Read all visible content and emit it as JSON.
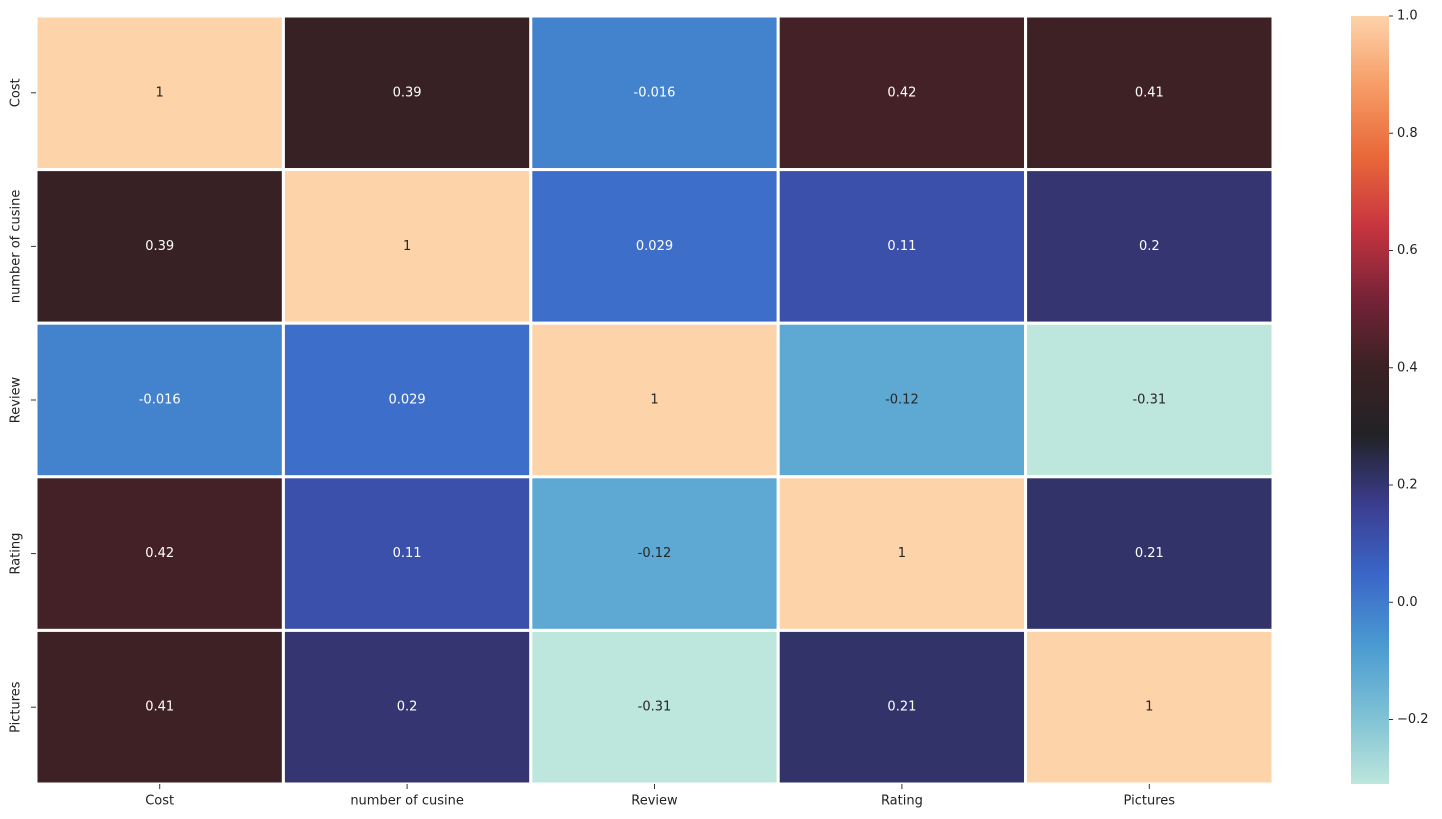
{
  "chart_data": {
    "type": "heatmap",
    "x": [
      "Cost",
      "number of cusine",
      "Review",
      "Rating",
      "Pictures"
    ],
    "y": [
      "Cost",
      "number of cusine",
      "Review",
      "Rating",
      "Pictures"
    ],
    "values": [
      [
        1,
        0.39,
        -0.016,
        0.42,
        0.41
      ],
      [
        0.39,
        1,
        0.029,
        0.11,
        0.2
      ],
      [
        -0.016,
        0.029,
        1,
        -0.12,
        -0.31
      ],
      [
        0.42,
        0.11,
        -0.12,
        1,
        0.21
      ],
      [
        0.41,
        0.2,
        -0.31,
        0.21,
        1
      ]
    ],
    "annot": true,
    "colorscale": [
      "#bde6dc",
      "#7cc0d4",
      "#4a9ad2",
      "#3a66c8",
      "#3b3d8f",
      "#222226",
      "#3b2124",
      "#7a2338",
      "#c8353f",
      "#e9693a",
      "#f69c66",
      "#fdd3aa"
    ],
    "zlim": [
      -0.31,
      1.0
    ],
    "zticks": [
      {
        "value": -0.2,
        "label": "−0.2"
      },
      {
        "value": 0,
        "label": "0.0"
      },
      0.2,
      0.4,
      0.6,
      0.8,
      {
        "value": 1.0,
        "label": "1.0"
      }
    ]
  }
}
